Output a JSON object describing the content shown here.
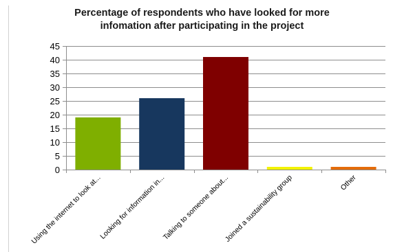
{
  "chart_data": {
    "type": "bar",
    "title_lines": [
      "Percentage of respondents who have looked for more",
      "infomation after participating in the project"
    ],
    "categories": [
      "Using the internet to look at...",
      "Looking for information in...",
      "Talking to someone about...",
      "Joined a sustainability group",
      "Other"
    ],
    "values": [
      19,
      26,
      41,
      1,
      1
    ],
    "bar_colors": [
      "#7FAF00",
      "#17375E",
      "#7F0000",
      "#F2F200",
      "#E46C0A"
    ],
    "ylim": [
      0,
      45
    ],
    "yticks": [
      0,
      5,
      10,
      15,
      20,
      25,
      30,
      35,
      40,
      45
    ],
    "grid": true,
    "legend": "none"
  }
}
